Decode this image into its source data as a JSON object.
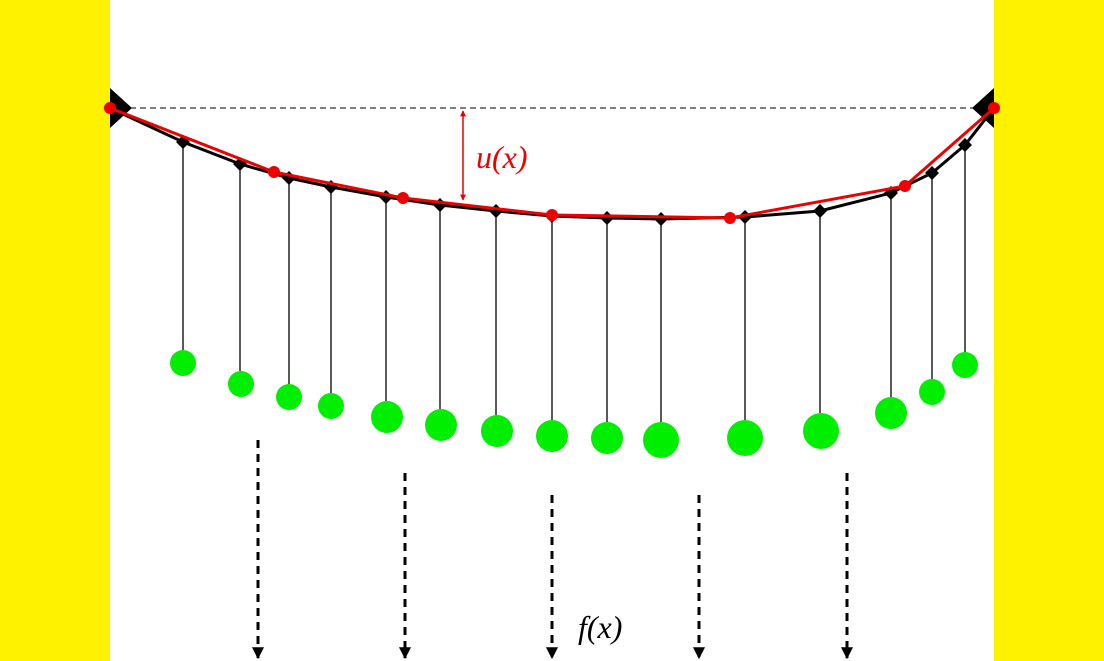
{
  "labels": {
    "u": "u(x)",
    "f": "f(x)"
  }
}
